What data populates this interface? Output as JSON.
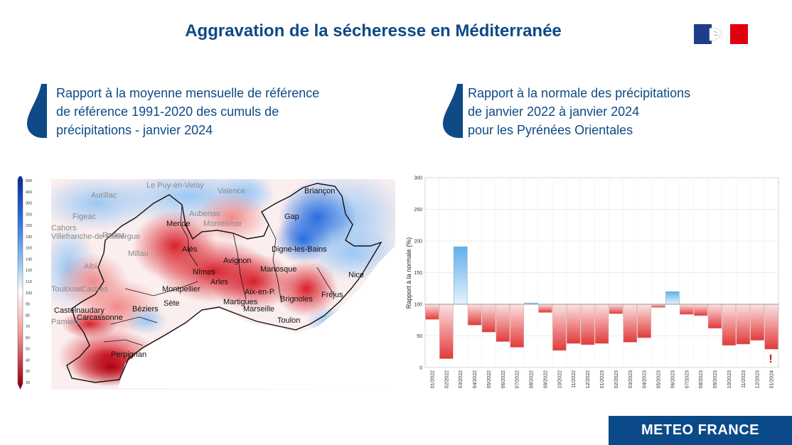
{
  "title": "Aggravation de la sécheresse en Méditerranée",
  "left_panel": {
    "subtitle": "Rapport à la moyenne mensuelle de référence\nde référence 1991-2020 des cumuls de\nprécipitations - janvier 2024",
    "legend_unit": "%",
    "legend_ticks": [
      "500",
      "400",
      "300",
      "250",
      "200",
      "180",
      "160",
      "140",
      "120",
      "110",
      "100",
      "90",
      "80",
      "70",
      "60",
      "50",
      "40",
      "30",
      "20"
    ],
    "cities_dark": [
      "Mende",
      "Alès",
      "Avignon",
      "Nîmes",
      "Arles",
      "Manosque",
      "Montpellier",
      "Aix-en-P.",
      "Martigues",
      "Marseille",
      "Brignoles",
      "Toulon",
      "Béziers",
      "Sète",
      "Castelnaudary",
      "Carcassonne",
      "Perpignan",
      "Gap",
      "Digne-les-Bains",
      "Nice",
      "Fréjus",
      "Briançon"
    ],
    "cities_light": [
      "Le Puy-en-Velay",
      "Valence",
      "Aurillac",
      "Figeac",
      "Aubenas",
      "Montélimar",
      "Rodez",
      "Millau",
      "Albi",
      "Castres",
      "Pamiers",
      "Villefranche-de-Rouergue",
      "Cahors",
      "Toulouse"
    ]
  },
  "right_panel": {
    "subtitle": "Rapport à la normale des précipitations\nde janvier 2022 à janvier 2024\n pour les Pyrénées Orientales",
    "alert_mark": "!"
  },
  "chart_data": {
    "type": "bar",
    "title": "Rapport à la normale des précipitations de janvier 2022 à janvier 2024 pour les Pyrénées Orientales",
    "xlabel": "",
    "ylabel": "Rapport à la normale (%)",
    "ylim": [
      0,
      300
    ],
    "yticks": [
      0,
      50,
      100,
      150,
      200,
      250,
      300
    ],
    "baseline": 100,
    "categories": [
      "01/2022",
      "02/2022",
      "03/2022",
      "04/2022",
      "05/2022",
      "06/2022",
      "07/2022",
      "08/2022",
      "09/2022",
      "10/2022",
      "11/2022",
      "12/2022",
      "01/2023",
      "02/2023",
      "03/2023",
      "04/2023",
      "05/2023",
      "06/2023",
      "07/2023",
      "08/2023",
      "09/2023",
      "10/2023",
      "11/2023",
      "12/2023",
      "01/2024"
    ],
    "values": [
      76,
      14,
      191,
      67,
      56,
      41,
      32,
      102,
      87,
      27,
      38,
      36,
      38,
      85,
      40,
      47,
      95,
      120,
      84,
      82,
      62,
      35,
      37,
      43,
      29
    ],
    "grid": true
  },
  "footer": {
    "brand": "METEO FRANCE"
  }
}
